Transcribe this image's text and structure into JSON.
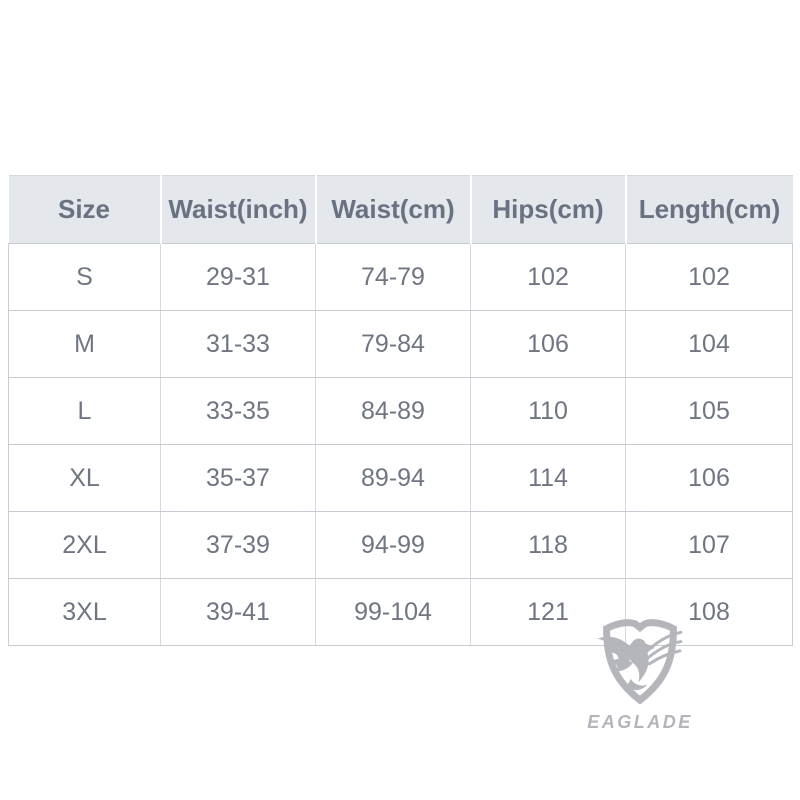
{
  "chart_data": {
    "type": "table",
    "columns": [
      "Size",
      "Waist(inch)",
      "Waist(cm)",
      "Hips(cm)",
      "Length(cm)"
    ],
    "rows": [
      [
        "S",
        "29-31",
        "74-79",
        "102",
        "102"
      ],
      [
        "M",
        "31-33",
        "79-84",
        "106",
        "104"
      ],
      [
        "L",
        "33-35",
        "84-89",
        "110",
        "105"
      ],
      [
        "XL",
        "35-37",
        "89-94",
        "114",
        "106"
      ],
      [
        "2XL",
        "37-39",
        "94-99",
        "118",
        "107"
      ],
      [
        "3XL",
        "39-41",
        "99-104",
        "121",
        "108"
      ]
    ]
  },
  "brand": {
    "name": "EAGLADE",
    "logo_icon": "eagle-shield-icon",
    "logo_color": "#b1b3b8"
  },
  "colors": {
    "page_background": "#ffffff",
    "header_background": "#e4e7ec",
    "header_text": "#6a7180",
    "body_text": "#6f7682",
    "row_border": "#c5cad3",
    "column_border": "#d5d9e0"
  }
}
